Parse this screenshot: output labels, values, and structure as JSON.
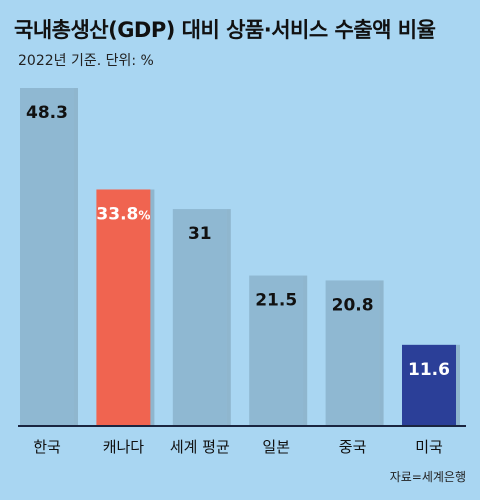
{
  "title": "국내총생산(GDP) 대비 상품·서비스 수출액 비율",
  "subtitle": "2022년 기준. 단위: %",
  "source": "자료=세계은행",
  "colors": {
    "background": "#a9d6f2",
    "bar_default": "#8fb8d2",
    "bar_canada": "#f06450",
    "bar_usa": "#2b3f98",
    "label_dark": "#111111",
    "label_light": "#ffffff",
    "baseline": "#1a2540"
  },
  "chart_data": {
    "type": "bar",
    "title": "국내총생산(GDP) 대비 상품·서비스 수출액 비율",
    "subtitle": "2022년 기준. 단위: %",
    "categories": [
      "한국",
      "캐나다",
      "세계 평균",
      "일본",
      "중국",
      "미국"
    ],
    "values": [
      48.3,
      33.8,
      31,
      21.5,
      20.8,
      11.6
    ],
    "value_labels": [
      "48.3",
      "33.8",
      "31",
      "21.5",
      "20.8",
      "11.6"
    ],
    "unit_suffix": [
      "",
      "%",
      "",
      "",
      "",
      ""
    ],
    "highlight": [
      "default",
      "canada",
      "default",
      "default",
      "default",
      "usa"
    ],
    "ylim": [
      0,
      50
    ],
    "grid": false,
    "xlabel": "",
    "ylabel": ""
  }
}
